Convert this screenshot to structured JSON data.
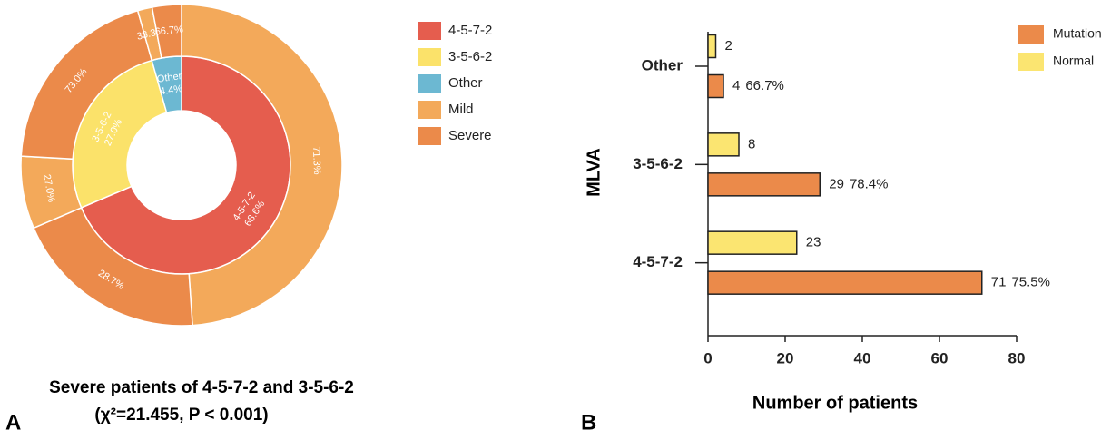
{
  "chart_data": [
    {
      "type": "sunburst",
      "panel_label": "A",
      "title": "Severe patients of 4-5-7-2 and 3-5-6-2",
      "subtitle": "(χ²=21.455, P < 0.001)",
      "categories": [
        "4-5-7-2",
        "3-5-6-2",
        "Other"
      ],
      "values": [
        68.6,
        27.0,
        4.4
      ],
      "value_labels": [
        "68.6%",
        "27.0%",
        "4.4%"
      ],
      "colors": [
        "#e55d4e",
        "#fbe26a",
        "#6cb8d2"
      ],
      "series": [
        {
          "name": "Mild",
          "color": "#f3a95a",
          "values": [
            71.3,
            27.0,
            33.3
          ],
          "value_labels": [
            "71.3%",
            "27.0%",
            "33.3%"
          ]
        },
        {
          "name": "Severe",
          "color": "#eb8a4a",
          "values": [
            28.7,
            73.0,
            66.7
          ],
          "value_labels": [
            "28.7%",
            "73.0%",
            "66.7%"
          ]
        }
      ]
    },
    {
      "type": "barh",
      "panel_label": "B",
      "xlabel": "Number of patients",
      "ylabel": "MLVA",
      "categories": [
        "Other",
        "3-5-6-2",
        "4-5-7-2"
      ],
      "series": [
        {
          "name": "Mutation",
          "color": "#eb8a4a",
          "values": [
            4,
            29,
            71
          ],
          "annotations": [
            "66.7%",
            "78.4%",
            "75.5%"
          ]
        },
        {
          "name": "Normal",
          "color": "#fbe571",
          "values": [
            2,
            8,
            23
          ]
        }
      ],
      "xlim": [
        0,
        80
      ],
      "xticks": [
        0,
        20,
        40,
        60,
        80
      ],
      "legend": "top-right"
    }
  ]
}
